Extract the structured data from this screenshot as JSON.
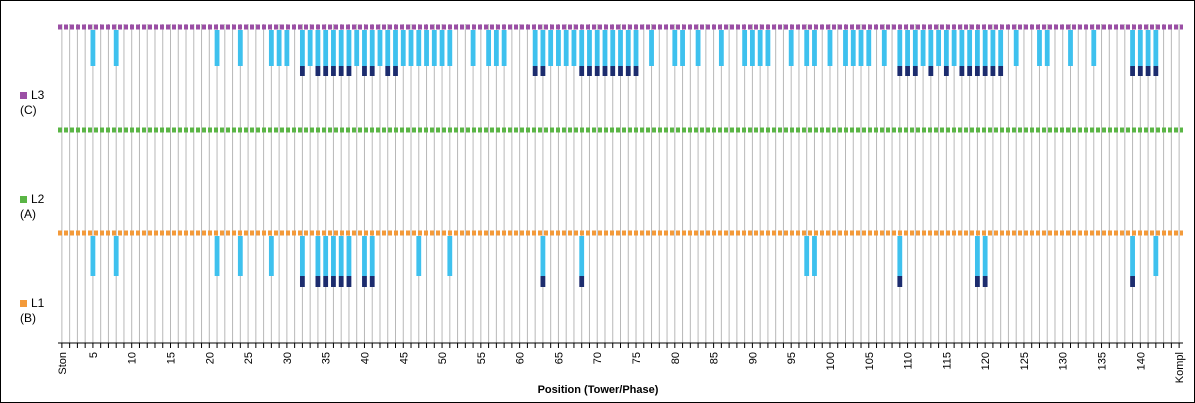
{
  "chart_data": {
    "type": "bar",
    "x_range": [
      1,
      145
    ],
    "first_category": "Ston",
    "last_category": "Kompl",
    "tick_labels": [
      "5",
      "10",
      "15",
      "20",
      "25",
      "30",
      "35",
      "40",
      "45",
      "50",
      "55",
      "60",
      "65",
      "70",
      "75",
      "80",
      "85",
      "90",
      "95",
      "100",
      "105",
      "110",
      "115",
      "120",
      "125",
      "130",
      "135",
      "140"
    ],
    "x_title": "Position (Tower/Phase)",
    "grid": true,
    "series_colors": {
      "L3": "#9b4fa5",
      "L2": "#5ab545",
      "L1": "#f39a3a",
      "light_bar": "#3ec1ee",
      "dark_bar": "#1c2c6e"
    },
    "lines": [
      {
        "name": "L3",
        "sub": "(C)",
        "light": [
          5,
          8,
          21,
          24,
          28,
          29,
          30,
          32,
          33,
          34,
          35,
          36,
          37,
          38,
          39,
          40,
          41,
          42,
          43,
          44,
          45,
          46,
          47,
          48,
          49,
          50,
          51,
          54,
          56,
          57,
          58,
          62,
          63,
          64,
          65,
          66,
          67,
          68,
          69,
          70,
          71,
          72,
          73,
          74,
          75,
          77,
          80,
          81,
          83,
          86,
          89,
          90,
          91,
          92,
          95,
          97,
          98,
          100,
          102,
          103,
          104,
          105,
          107,
          109,
          110,
          111,
          112,
          113,
          114,
          115,
          116,
          117,
          118,
          119,
          120,
          121,
          122,
          124,
          127,
          128,
          131,
          134,
          139,
          140,
          141,
          142
        ],
        "dark": [
          32,
          34,
          35,
          36,
          37,
          38,
          40,
          41,
          43,
          44,
          62,
          63,
          68,
          69,
          70,
          71,
          72,
          73,
          74,
          75,
          109,
          110,
          111,
          113,
          115,
          117,
          118,
          119,
          120,
          121,
          122,
          139,
          140,
          141,
          142
        ]
      },
      {
        "name": "L2",
        "sub": "(A)",
        "light": [],
        "dark": []
      },
      {
        "name": "L1",
        "sub": "(B)",
        "light": [
          5,
          8,
          21,
          24,
          28,
          32,
          34,
          35,
          36,
          37,
          38,
          40,
          41,
          47,
          51,
          63,
          68,
          97,
          98,
          109,
          119,
          120,
          139,
          142
        ],
        "dark": [
          32,
          34,
          35,
          36,
          37,
          38,
          40,
          41,
          63,
          68,
          109,
          119,
          120,
          139
        ]
      }
    ]
  }
}
